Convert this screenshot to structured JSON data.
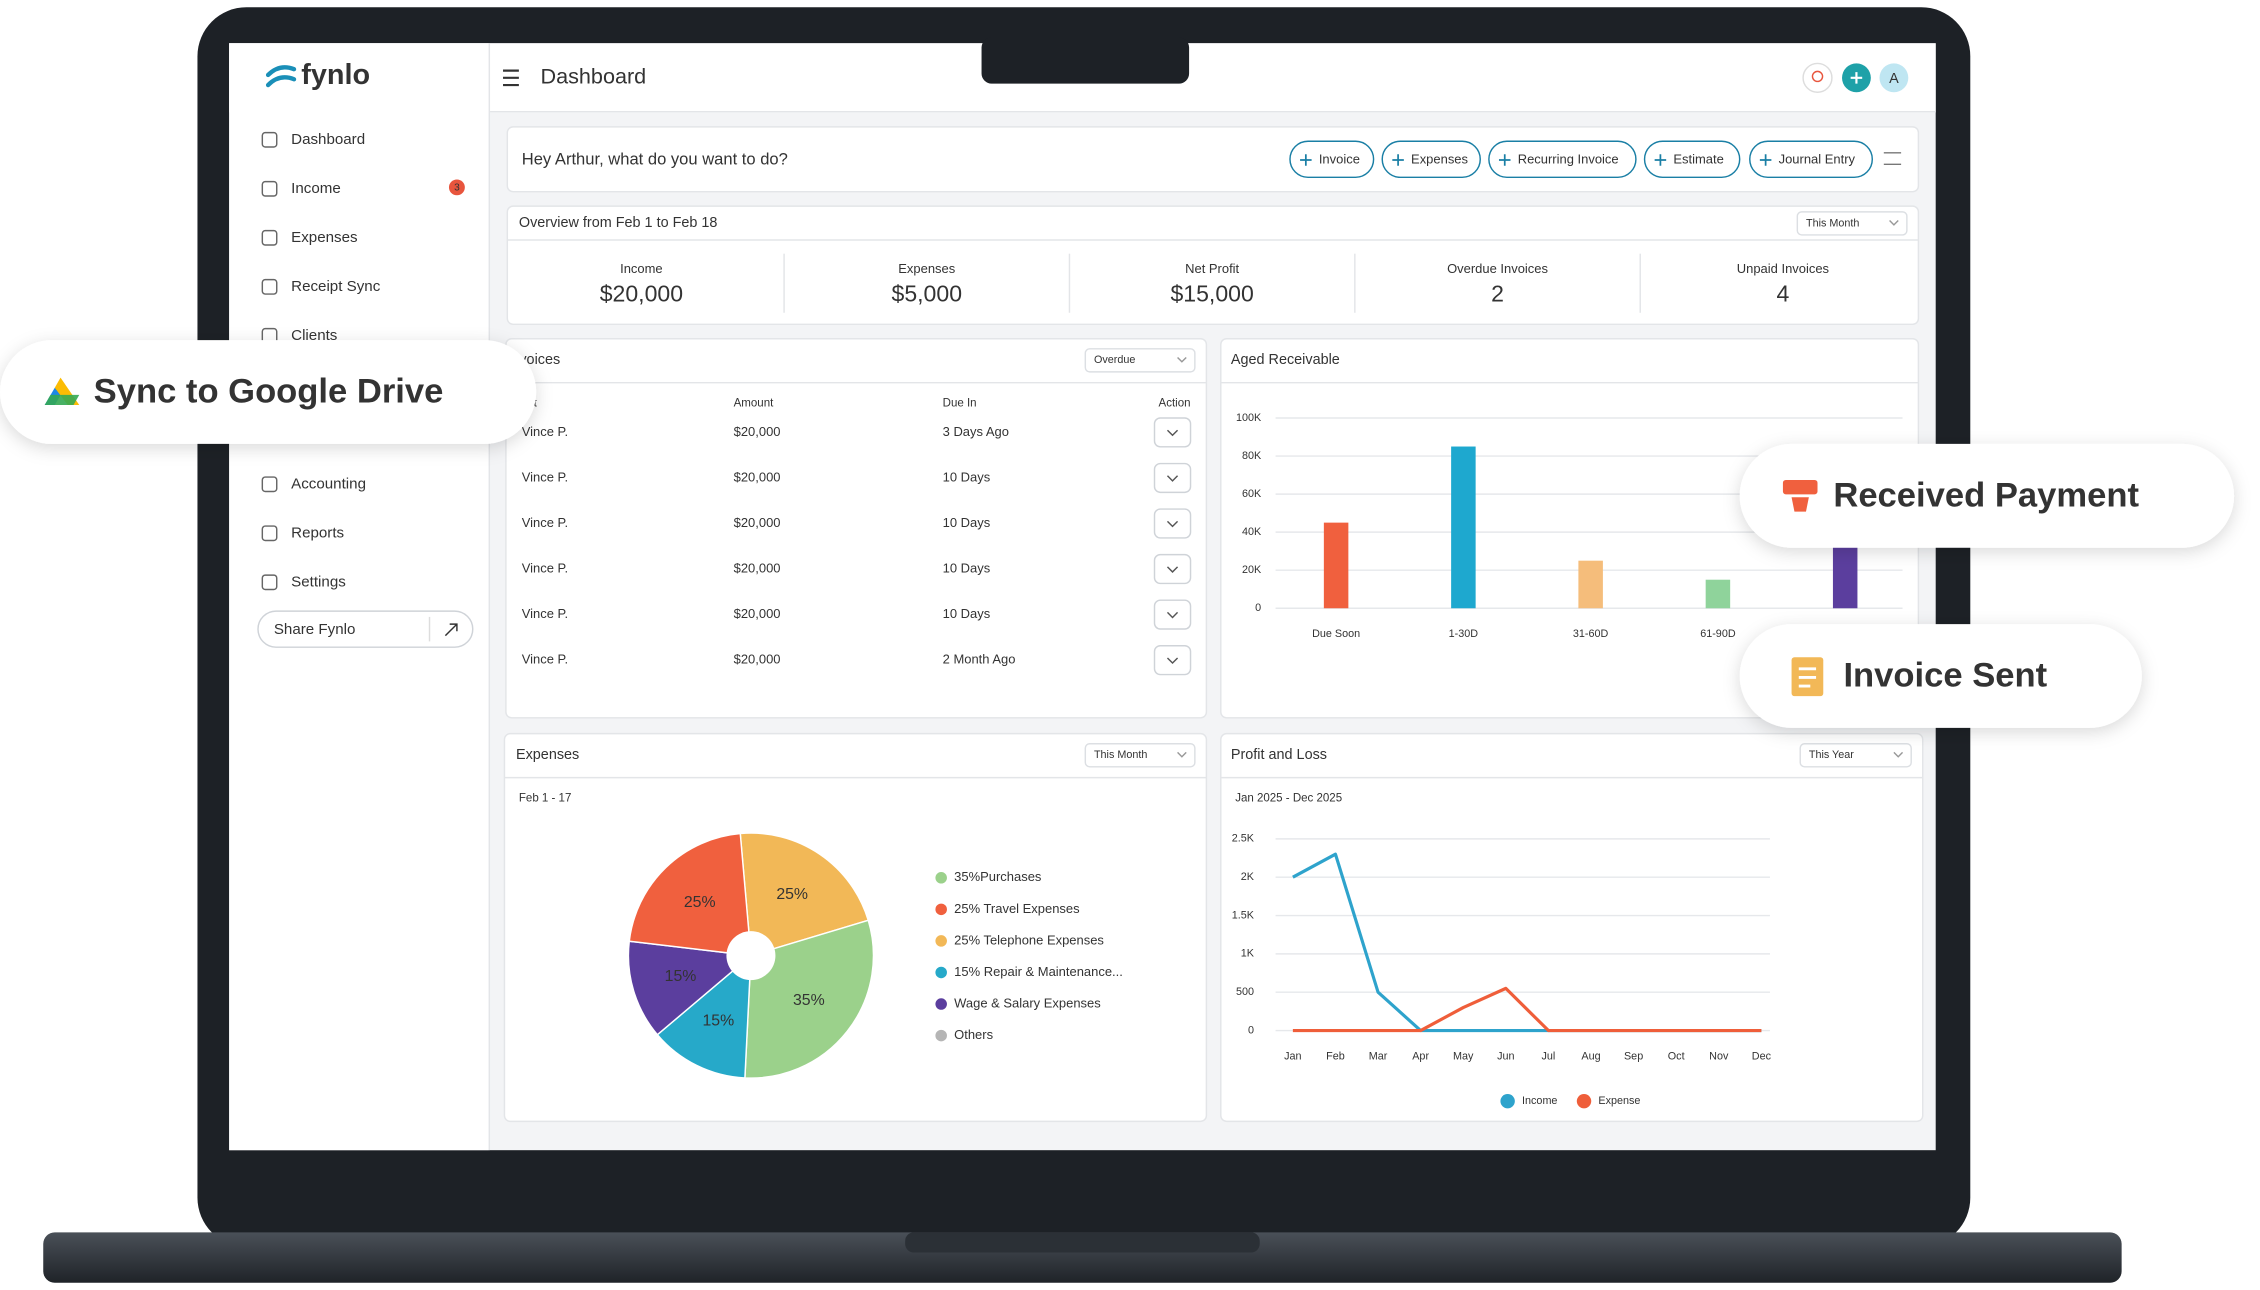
{
  "brand": "fynlo",
  "header": {
    "title": "Dashboard",
    "avatar": "A"
  },
  "sidebar": {
    "items": [
      "Dashboard",
      "Income",
      "Expenses",
      "Receipt Sync",
      "Clients",
      "Accounting",
      "Reports",
      "Settings"
    ],
    "badge": "3",
    "share": "Share Fynlo"
  },
  "quick_actions": {
    "prompt": "Hey Arthur, what do you want to do?",
    "buttons": [
      "Invoice",
      "Expenses",
      "Recurring Invoice",
      "Estimate",
      "Journal Entry"
    ]
  },
  "overview": {
    "title": "Overview from Feb 1 to Feb 18",
    "period": "This Month",
    "stats": [
      {
        "label": "Income",
        "value": "$20,000",
        "color": "#1a8fb8"
      },
      {
        "label": "Expenses",
        "value": "$5,000",
        "color": "#e8553d"
      },
      {
        "label": "Net Profit",
        "value": "$15,000",
        "color": "#4cb782"
      },
      {
        "label": "Overdue Invoices",
        "value": "2",
        "color": "#e8553d"
      },
      {
        "label": "Unpaid Invoices",
        "value": "4",
        "color": "#555555"
      }
    ]
  },
  "invoices": {
    "title": "Invoices",
    "filter": "Overdue",
    "columns": [
      "Client",
      "Amount",
      "Due In",
      "Action"
    ],
    "rows": [
      {
        "client": "Vince P.",
        "amount": "$20,000",
        "due": "3 Days Ago",
        "due_color": "#e8553d"
      },
      {
        "client": "Vince P.",
        "amount": "$20,000",
        "due": "10 Days",
        "due_color": "#444444"
      },
      {
        "client": "Vince P.",
        "amount": "$20,000",
        "due": "10 Days",
        "due_color": "#444444"
      },
      {
        "client": "Vince P.",
        "amount": "$20,000",
        "due": "10 Days",
        "due_color": "#444444"
      },
      {
        "client": "Vince P.",
        "amount": "$20,000",
        "due": "10 Days",
        "due_color": "#444444"
      },
      {
        "client": "Vince P.",
        "amount": "$20,000",
        "due": "2 Month Ago",
        "due_color": "#e8553d"
      }
    ]
  },
  "aged_receivable": {
    "type": "bar",
    "title": "Aged Receivable",
    "categories": [
      "Due Soon",
      "1-30D",
      "31-60D",
      "61-90D",
      null
    ],
    "values": [
      45000,
      85000,
      25000,
      15000,
      35000
    ],
    "colors": [
      "#f0603e",
      "#1ea8cf",
      "#f5bd7b",
      "#8fd39b",
      "#5b3e9e"
    ],
    "ylim": [
      0,
      100000
    ],
    "yticks": [
      0,
      {
        "value": 20000,
        "label": "20K"
      },
      {
        "value": 40000,
        "label": "40K"
      },
      {
        "value": 60000,
        "label": "60K"
      },
      {
        "value": 80000,
        "label": "80K"
      },
      {
        "value": 100000,
        "label": "100K"
      }
    ],
    "grid": true
  },
  "expenses": {
    "type": "pie",
    "title": "Expenses",
    "filter": "This Month",
    "subtitle": "Feb 1 - 17",
    "categories": [
      "35%Purchases",
      "25% Travel Expenses",
      "25% Telephone Expenses",
      "15% Repair & Maintenance...",
      "Wage & Salary Expenses",
      "Others"
    ],
    "values": [
      35,
      25,
      25,
      15,
      15,
      0
    ],
    "value_labels": [
      "35%",
      "25%",
      "25%",
      "15%",
      "15%",
      null
    ],
    "colors": [
      "#9bd18b",
      "#f0603e",
      "#f2b857",
      "#26a9c9",
      "#5b3e9e",
      "#b5b5b5"
    ]
  },
  "profit_loss": {
    "type": "line",
    "title": "Profit and Loss",
    "filter": "This Year",
    "subtitle": "Jan 2025 - Dec 2025",
    "categories": [
      "Jan",
      "Feb",
      "Mar",
      "Apr",
      "May",
      "Jun",
      "Jul",
      "Aug",
      "Sep",
      "Oct",
      "Nov",
      "Dec"
    ],
    "series": [
      {
        "name": "Income",
        "color": "#2ea3cc",
        "values": [
          2000,
          2300,
          500,
          0,
          0,
          0,
          0,
          0,
          0,
          0,
          0,
          0
        ]
      },
      {
        "name": "Expense",
        "color": "#ef5e3a",
        "values": [
          0,
          0,
          0,
          0,
          300,
          550,
          0,
          0,
          0,
          0,
          0,
          0
        ]
      }
    ],
    "ylim": [
      0,
      2500
    ],
    "yticks": [
      0,
      500,
      {
        "value": 1000,
        "label": "1K"
      },
      {
        "value": 1500,
        "label": "1.5K"
      },
      {
        "value": 2000,
        "label": "2K"
      },
      {
        "value": 2500,
        "label": "2.5K"
      }
    ],
    "grid": true
  },
  "notifications": [
    "Sync to Google Drive",
    "Received Payment",
    "Invoice Sent"
  ]
}
